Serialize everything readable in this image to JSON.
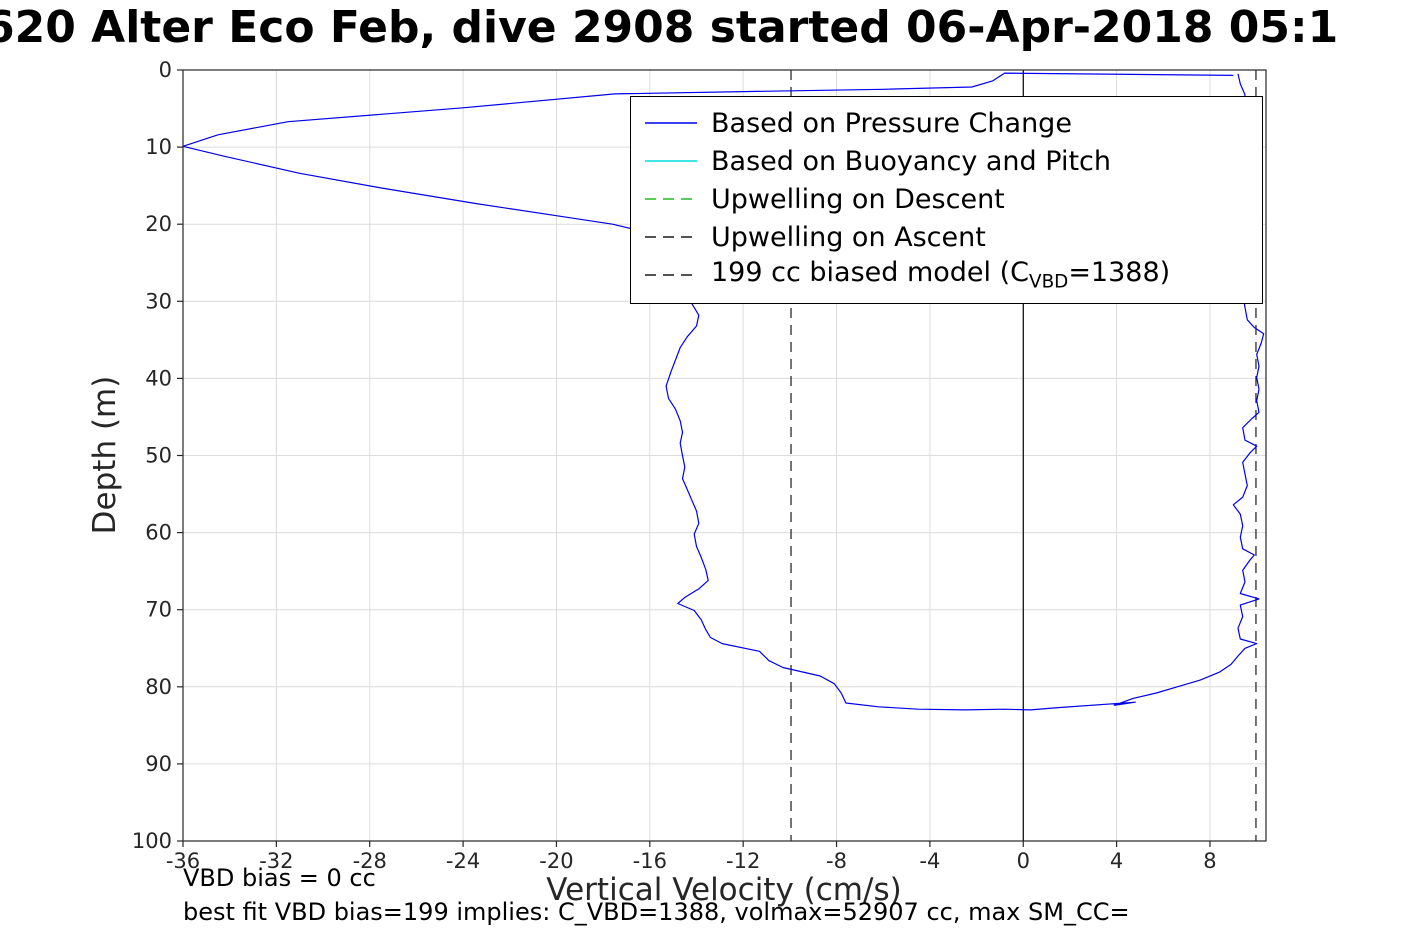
{
  "title": "620 Alter Eco Feb, dive 2908 started 06-Apr-2018 05:1",
  "annotations": {
    "vbd_bias": "VBD bias = 0 cc",
    "best_fit": "best fit VBD bias=199 implies: C_VBD=1388, volmax=52907 cc, max SM_CC="
  },
  "legend": {
    "items": [
      {
        "label": "Based on Pressure Change",
        "color": "#0000ee",
        "dash": "solid"
      },
      {
        "label": "Based on Buoyancy and Pitch",
        "color": "#00dddd",
        "dash": "solid"
      },
      {
        "label": "Upwelling on Descent",
        "color": "#22bb22",
        "dash": "dashed"
      },
      {
        "label": "Upwelling on Ascent",
        "color": "#1a1a1a",
        "dash": "dashed"
      },
      {
        "label_prefix": "199 cc biased model (C",
        "label_sub": "VBD",
        "label_suffix": "=1388)",
        "color": "#1a1a1a",
        "dash": "dashed"
      }
    ]
  },
  "chart_data": {
    "type": "line",
    "title": "620 Alter Eco Feb, dive 2908 started 06-Apr-2018 05:1",
    "xlabel": "Vertical Velocity (cm/s)",
    "ylabel": "Depth (m)",
    "xlim": [
      -36,
      10.4
    ],
    "ylim": [
      0,
      100
    ],
    "y_inverted": true,
    "grid": true,
    "grid_color": "#dcdcdc",
    "axis_color": "#262626",
    "x_ticks": [
      -36,
      -32,
      -28,
      -24,
      -20,
      -16,
      -12,
      -8,
      -4,
      0,
      4,
      8
    ],
    "y_ticks": [
      0,
      10,
      20,
      30,
      40,
      50,
      60,
      70,
      80,
      90,
      100
    ],
    "legend_position": "northeast",
    "ref_lines": [
      {
        "name": "zero-velocity-line",
        "x": 0,
        "color": "#000000",
        "dash": "solid"
      },
      {
        "name": "model-descent-line",
        "x": -9.95,
        "color": "#1a1a1a",
        "dash": "dashed"
      },
      {
        "name": "model-ascent-line",
        "x": 9.97,
        "color": "#1a1a1a",
        "dash": "dashed"
      }
    ],
    "series": [
      {
        "name": "Based on Pressure Change",
        "color": "#0000ee",
        "style": "solid",
        "points": [
          [
            9.0,
            0.7
          ],
          [
            -0.8,
            0.4
          ],
          [
            -1.3,
            1.4
          ],
          [
            -2.2,
            2.2
          ],
          [
            -6.0,
            2.5
          ],
          [
            -12.0,
            2.8
          ],
          [
            -17.5,
            3.1
          ],
          [
            -24.0,
            4.9
          ],
          [
            -31.5,
            6.7
          ],
          [
            -34.5,
            8.4
          ],
          [
            -36.0,
            9.9
          ],
          [
            -34.2,
            11.2
          ],
          [
            -31.0,
            13.4
          ],
          [
            -27.5,
            15.3
          ],
          [
            -23.5,
            17.3
          ],
          [
            -20.0,
            18.9
          ],
          [
            -17.6,
            20.0
          ],
          [
            -16.2,
            21.0
          ],
          [
            -15.6,
            22.1
          ],
          [
            -15.1,
            23.2
          ],
          [
            -14.8,
            24.6
          ],
          [
            -14.7,
            26.0
          ],
          [
            -14.8,
            27.4
          ],
          [
            -14.6,
            28.8
          ],
          [
            -14.2,
            30.3
          ],
          [
            -13.9,
            31.8
          ],
          [
            -14.0,
            33.2
          ],
          [
            -14.4,
            34.6
          ],
          [
            -14.7,
            36.0
          ],
          [
            -14.9,
            37.6
          ],
          [
            -15.1,
            39.2
          ],
          [
            -15.3,
            41.0
          ],
          [
            -15.2,
            42.6
          ],
          [
            -14.9,
            44.0
          ],
          [
            -14.7,
            45.5
          ],
          [
            -14.6,
            47.0
          ],
          [
            -14.7,
            48.4
          ],
          [
            -14.6,
            50.0
          ],
          [
            -14.5,
            51.5
          ],
          [
            -14.6,
            53.0
          ],
          [
            -14.4,
            54.4
          ],
          [
            -14.2,
            55.8
          ],
          [
            -14.0,
            57.2
          ],
          [
            -13.9,
            58.8
          ],
          [
            -14.1,
            60.2
          ],
          [
            -14.0,
            61.8
          ],
          [
            -13.8,
            63.2
          ],
          [
            -13.6,
            64.8
          ],
          [
            -13.5,
            66.2
          ],
          [
            -13.9,
            67.3
          ],
          [
            -14.5,
            68.4
          ],
          [
            -14.8,
            69.2
          ],
          [
            -14.1,
            70.1
          ],
          [
            -13.8,
            71.3
          ],
          [
            -13.6,
            72.6
          ],
          [
            -13.4,
            73.6
          ],
          [
            -12.9,
            74.4
          ],
          [
            -11.3,
            75.4
          ],
          [
            -10.9,
            76.6
          ],
          [
            -10.3,
            77.5
          ],
          [
            -8.7,
            78.6
          ],
          [
            -8.1,
            79.6
          ],
          [
            -7.8,
            80.8
          ],
          [
            -7.6,
            82.1
          ],
          [
            -6.2,
            82.6
          ],
          [
            -4.5,
            82.9
          ],
          [
            -2.5,
            83.0
          ],
          [
            -0.8,
            82.9
          ],
          [
            0.3,
            83.0
          ],
          [
            1.5,
            82.7
          ],
          [
            4.8,
            82.0
          ],
          [
            3.9,
            82.4
          ],
          [
            4.7,
            81.5
          ],
          [
            5.7,
            80.8
          ],
          [
            6.6,
            80.0
          ],
          [
            7.6,
            79.1
          ],
          [
            8.4,
            78.1
          ],
          [
            8.9,
            77.1
          ],
          [
            9.2,
            76.0
          ],
          [
            9.5,
            75.0
          ],
          [
            10.0,
            74.4
          ],
          [
            9.3,
            73.8
          ],
          [
            9.2,
            72.4
          ],
          [
            9.4,
            70.9
          ],
          [
            9.3,
            69.4
          ],
          [
            10.1,
            68.6
          ],
          [
            9.3,
            67.9
          ],
          [
            9.5,
            66.4
          ],
          [
            9.4,
            64.9
          ],
          [
            9.7,
            63.6
          ],
          [
            9.9,
            62.9
          ],
          [
            9.4,
            62.1
          ],
          [
            9.3,
            60.6
          ],
          [
            9.4,
            59.1
          ],
          [
            9.3,
            57.6
          ],
          [
            9.0,
            56.4
          ],
          [
            9.4,
            55.4
          ],
          [
            9.6,
            53.9
          ],
          [
            9.5,
            52.4
          ],
          [
            9.4,
            50.9
          ],
          [
            9.7,
            49.7
          ],
          [
            10.0,
            48.8
          ],
          [
            9.5,
            48.0
          ],
          [
            9.4,
            46.4
          ],
          [
            9.8,
            45.2
          ],
          [
            10.1,
            44.4
          ],
          [
            10.0,
            42.9
          ],
          [
            10.1,
            41.4
          ],
          [
            10.0,
            39.9
          ],
          [
            10.1,
            38.4
          ],
          [
            10.0,
            36.9
          ],
          [
            10.2,
            35.4
          ],
          [
            10.3,
            34.2
          ],
          [
            9.9,
            33.4
          ],
          [
            9.6,
            32.4
          ],
          [
            9.5,
            30.8
          ],
          [
            9.4,
            29.0
          ],
          [
            9.5,
            27.0
          ],
          [
            9.4,
            25.0
          ],
          [
            9.5,
            23.0
          ],
          [
            9.4,
            21.0
          ],
          [
            9.5,
            19.0
          ],
          [
            9.4,
            17.0
          ],
          [
            9.5,
            15.0
          ],
          [
            9.4,
            13.0
          ],
          [
            9.5,
            11.0
          ],
          [
            9.4,
            9.0
          ],
          [
            9.5,
            7.0
          ],
          [
            9.4,
            5.0
          ],
          [
            9.5,
            3.2
          ],
          [
            9.3,
            1.8
          ],
          [
            9.2,
            0.5
          ]
        ]
      },
      {
        "name": "Based on Buoyancy and Pitch",
        "color": "#00dddd",
        "style": "solid",
        "points": []
      },
      {
        "name": "Upwelling on Descent",
        "color": "#22bb22",
        "style": "dashed",
        "points": []
      },
      {
        "name": "Upwelling on Ascent",
        "color": "#1a1a1a",
        "style": "dashed",
        "points": []
      },
      {
        "name": "199 cc biased model (C_VBD=1388)",
        "color": "#1a1a1a",
        "style": "dashed",
        "points": []
      }
    ]
  }
}
